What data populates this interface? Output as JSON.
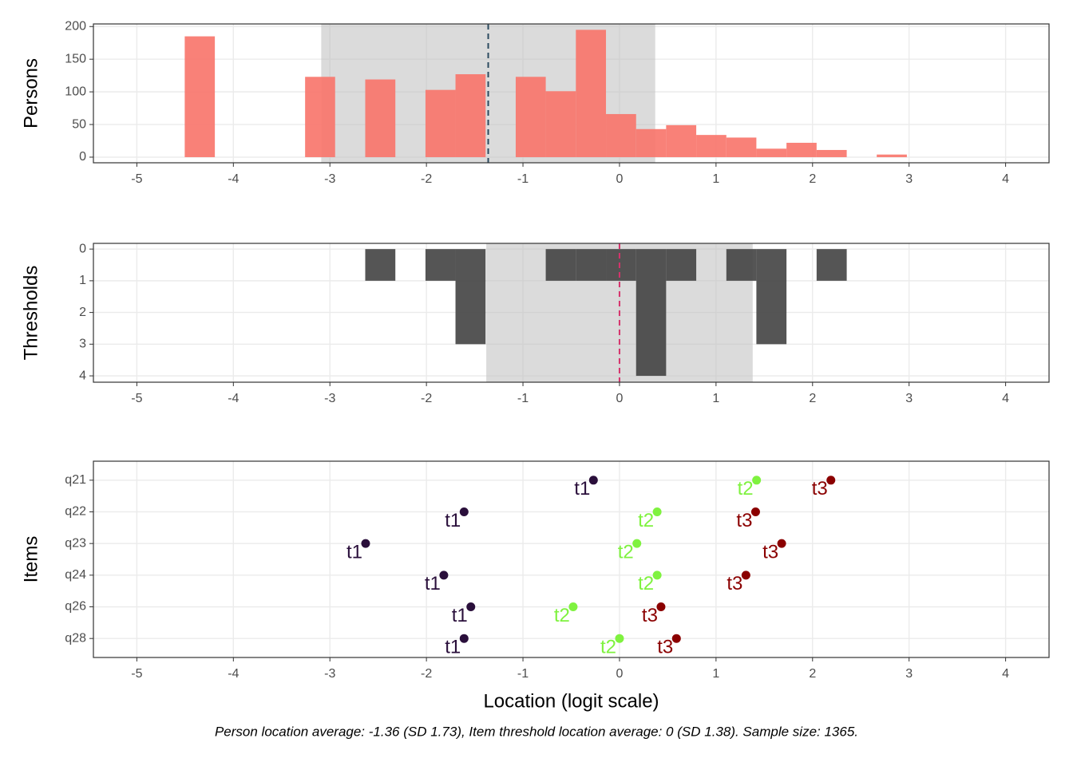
{
  "chart_data": [
    {
      "type": "histogram",
      "y_label": "Persons",
      "bins": [
        -4.504,
        -4.192,
        -3.881,
        -3.569,
        -3.257,
        -2.946,
        -2.634,
        -2.322,
        -2.01,
        -1.699,
        -1.387,
        -1.075,
        -0.764,
        -0.452,
        -0.14,
        0.172,
        0.483,
        0.795,
        1.107,
        1.418,
        1.73,
        2.042,
        2.354,
        2.665,
        2.977
      ],
      "counts": [
        185,
        0,
        0,
        0,
        123,
        0,
        119,
        0,
        103,
        127,
        0,
        123,
        101,
        195,
        66,
        43,
        49,
        34,
        30,
        13,
        22,
        11,
        0,
        4
      ],
      "color": "#F8766D",
      "xlim": [
        -5.45,
        4.45
      ],
      "xticks": [
        -5,
        -4,
        -3,
        -2,
        -1,
        0,
        1,
        2,
        3,
        4
      ],
      "ylim": [
        -8.6,
        204
      ],
      "yticks": [
        0,
        50,
        100,
        150,
        200
      ],
      "grid": true,
      "mean": -1.36,
      "sd": 1.73,
      "mean_color": "#2B4A5F"
    },
    {
      "type": "histogram",
      "y_label": "Thresholds",
      "bins": [
        -4.504,
        -4.192,
        -3.881,
        -3.569,
        -3.257,
        -2.946,
        -2.634,
        -2.322,
        -2.01,
        -1.699,
        -1.387,
        -1.075,
        -0.764,
        -0.452,
        -0.14,
        0.172,
        0.483,
        0.795,
        1.107,
        1.418,
        1.73,
        2.042,
        2.354,
        2.665,
        2.977
      ],
      "counts": [
        0,
        0,
        0,
        0,
        0,
        0,
        1,
        0,
        1,
        3,
        0,
        0,
        1,
        1,
        1,
        4,
        1,
        0,
        1,
        3,
        0,
        1,
        0,
        0
      ],
      "color": "#474747",
      "xlim": [
        -5.45,
        4.45
      ],
      "xticks": [
        -5,
        -4,
        -3,
        -2,
        -1,
        0,
        1,
        2,
        3,
        4
      ],
      "ylim": [
        4.2,
        -0.18
      ],
      "yticks": [
        0,
        1,
        2,
        3,
        4
      ],
      "grid": true,
      "mean": 0,
      "sd": 1.38,
      "mean_color": "#D6336C"
    },
    {
      "type": "dot",
      "y_label": "Items",
      "x_label": "Location (logit scale)",
      "caption": "Person location average: -1.36 (SD 1.73), Item threshold location average: 0 (SD 1.38). Sample size: 1365.",
      "categories": [
        "q21",
        "q22",
        "q23",
        "q24",
        "q26",
        "q28"
      ],
      "series": [
        {
          "name": "t1",
          "color": "#2A0F3B",
          "values": [
            -0.27,
            -1.61,
            -2.63,
            -1.82,
            -1.54,
            -1.61
          ]
        },
        {
          "name": "t2",
          "color": "#7FF23F",
          "values": [
            1.42,
            0.39,
            0.18,
            0.39,
            -0.48,
            0.0
          ]
        },
        {
          "name": "t3",
          "color": "#8B0000",
          "values": [
            2.19,
            1.41,
            1.68,
            1.31,
            0.43,
            0.59
          ]
        }
      ],
      "xlim": [
        -5.45,
        4.45
      ],
      "xticks": [
        -5,
        -4,
        -3,
        -2,
        -1,
        0,
        1,
        2,
        3,
        4
      ],
      "grid": true
    }
  ]
}
